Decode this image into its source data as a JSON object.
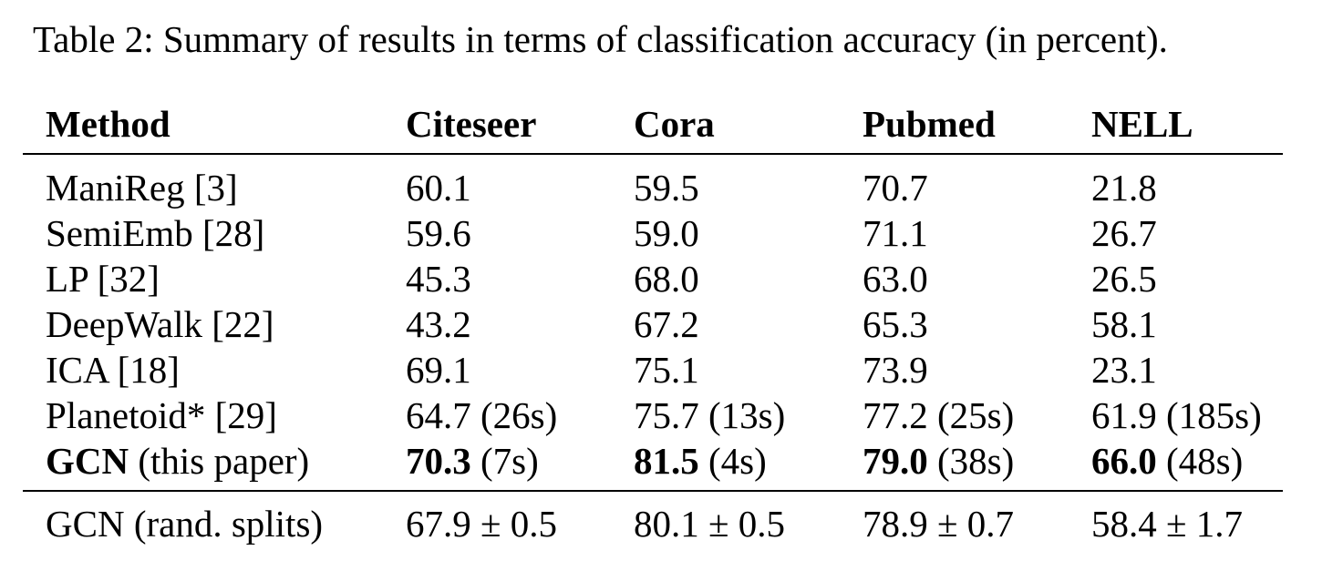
{
  "caption": "Table 2: Summary of results in terms of classification accuracy (in percent).",
  "table": {
    "headers": [
      "Method",
      "Citeseer",
      "Cora",
      "Pubmed",
      "NELL"
    ],
    "rows": [
      [
        "ManiReg [3]",
        "60.1",
        "59.5",
        "70.7",
        "21.8"
      ],
      [
        "SemiEmb [28]",
        "59.6",
        "59.0",
        "71.1",
        "26.7"
      ],
      [
        "LP [32]",
        "45.3",
        "68.0",
        "63.0",
        "26.5"
      ],
      [
        "DeepWalk [22]",
        "43.2",
        "67.2",
        "65.3",
        "58.1"
      ],
      [
        "ICA [18]",
        "69.1",
        "75.1",
        "73.9",
        "23.1"
      ],
      [
        "Planetoid* [29]",
        "64.7 (26s)",
        "75.7 (13s)",
        "77.2 (25s)",
        "61.9 (185s)"
      ]
    ],
    "gcn_row": {
      "method_bold": "GCN",
      "method_rest": " (this paper)",
      "cells": [
        {
          "bold": "70.3",
          "rest": " (7s)"
        },
        {
          "bold": "81.5",
          "rest": " (4s)"
        },
        {
          "bold": "79.0",
          "rest": " (38s)"
        },
        {
          "bold": "66.0",
          "rest": " (48s)"
        }
      ]
    },
    "last_row": [
      "GCN (rand. splits)",
      "67.9 ± 0.5",
      "80.1 ± 0.5",
      "78.9 ± 0.7",
      "58.4 ± 1.7"
    ]
  }
}
